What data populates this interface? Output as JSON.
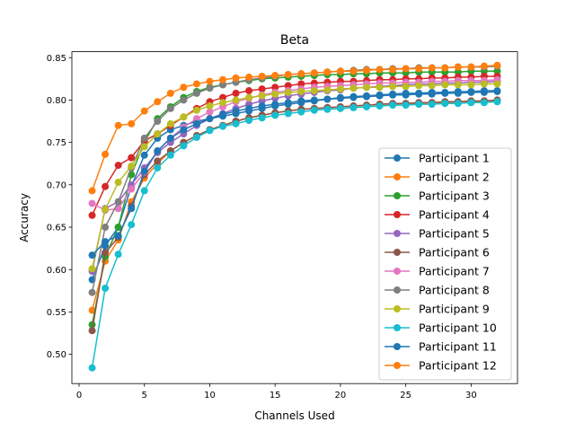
{
  "chart_data": {
    "type": "line",
    "title": "Beta",
    "xlabel": "Channels Used",
    "ylabel": "Accuracy",
    "xlim": [
      -0.55,
      33.55
    ],
    "ylim": [
      0.4655,
      0.857
    ],
    "xticks": [
      0,
      5,
      10,
      15,
      20,
      25,
      30
    ],
    "yticks": [
      0.5,
      0.55,
      0.6,
      0.65,
      0.7,
      0.75,
      0.8,
      0.85
    ],
    "ytick_labels": [
      "0.50",
      "0.55",
      "0.60",
      "0.65",
      "0.70",
      "0.75",
      "0.80",
      "0.85"
    ],
    "grid": false,
    "legend": "lower-right",
    "x": [
      1,
      2,
      3,
      4,
      5,
      6,
      7,
      8,
      9,
      10,
      11,
      12,
      13,
      14,
      15,
      16,
      17,
      18,
      19,
      20,
      21,
      22,
      23,
      24,
      25,
      26,
      27,
      28,
      29,
      30,
      31,
      32
    ],
    "series": [
      {
        "name": "Participant 1",
        "color": "#1f77b4",
        "values": [
          0.588,
          0.628,
          0.65,
          0.698,
          0.735,
          0.755,
          0.765,
          0.77,
          0.775,
          0.778,
          0.781,
          0.784,
          0.787,
          0.79,
          0.793,
          0.795,
          0.797,
          0.799,
          0.801,
          0.803,
          0.804,
          0.805,
          0.806,
          0.807,
          0.808,
          0.808,
          0.809,
          0.809,
          0.81,
          0.81,
          0.811,
          0.811
        ]
      },
      {
        "name": "Participant 2",
        "color": "#ff7f0e",
        "values": [
          0.552,
          0.61,
          0.635,
          0.68,
          0.708,
          0.725,
          0.74,
          0.75,
          0.758,
          0.765,
          0.77,
          0.775,
          0.779,
          0.782,
          0.785,
          0.787,
          0.789,
          0.79,
          0.791,
          0.792,
          0.793,
          0.794,
          0.795,
          0.795,
          0.796,
          0.796,
          0.797,
          0.797,
          0.798,
          0.798,
          0.799,
          0.799
        ]
      },
      {
        "name": "Participant 3",
        "color": "#2ca02c",
        "values": [
          0.535,
          0.615,
          0.65,
          0.712,
          0.75,
          0.778,
          0.792,
          0.803,
          0.81,
          0.815,
          0.818,
          0.821,
          0.823,
          0.825,
          0.826,
          0.827,
          0.828,
          0.829,
          0.83,
          0.83,
          0.831,
          0.831,
          0.832,
          0.832,
          0.832,
          0.833,
          0.833,
          0.833,
          0.833,
          0.834,
          0.834,
          0.834
        ]
      },
      {
        "name": "Participant 4",
        "color": "#d62728",
        "values": [
          0.664,
          0.698,
          0.723,
          0.732,
          0.752,
          0.76,
          0.77,
          0.78,
          0.79,
          0.798,
          0.803,
          0.808,
          0.811,
          0.813,
          0.815,
          0.817,
          0.819,
          0.82,
          0.821,
          0.822,
          0.822,
          0.823,
          0.824,
          0.824,
          0.825,
          0.825,
          0.826,
          0.826,
          0.827,
          0.827,
          0.828,
          0.828
        ]
      },
      {
        "name": "Participant 5",
        "color": "#9467bd",
        "values": [
          0.598,
          0.672,
          0.68,
          0.7,
          0.72,
          0.738,
          0.75,
          0.76,
          0.77,
          0.778,
          0.784,
          0.79,
          0.795,
          0.799,
          0.802,
          0.805,
          0.807,
          0.809,
          0.811,
          0.812,
          0.814,
          0.815,
          0.816,
          0.817,
          0.818,
          0.819,
          0.819,
          0.82,
          0.82,
          0.821,
          0.821,
          0.822
        ]
      },
      {
        "name": "Participant 6",
        "color": "#8c564b",
        "values": [
          0.528,
          0.62,
          0.638,
          0.675,
          0.712,
          0.728,
          0.74,
          0.75,
          0.758,
          0.765,
          0.77,
          0.775,
          0.779,
          0.782,
          0.785,
          0.787,
          0.789,
          0.79,
          0.791,
          0.792,
          0.793,
          0.794,
          0.795,
          0.796,
          0.796,
          0.797,
          0.797,
          0.798,
          0.798,
          0.799,
          0.799,
          0.8
        ]
      },
      {
        "name": "Participant 7",
        "color": "#e377c2",
        "values": [
          0.678,
          0.67,
          0.672,
          0.695,
          0.715,
          0.74,
          0.755,
          0.768,
          0.778,
          0.786,
          0.792,
          0.798,
          0.802,
          0.806,
          0.809,
          0.811,
          0.813,
          0.815,
          0.816,
          0.817,
          0.818,
          0.819,
          0.82,
          0.82,
          0.821,
          0.821,
          0.822,
          0.822,
          0.823,
          0.823,
          0.823,
          0.824
        ]
      },
      {
        "name": "Participant 8",
        "color": "#7f7f7f",
        "values": [
          0.573,
          0.65,
          0.68,
          0.72,
          0.755,
          0.775,
          0.79,
          0.8,
          0.808,
          0.814,
          0.818,
          0.821,
          0.824,
          0.826,
          0.828,
          0.83,
          0.831,
          0.832,
          0.833,
          0.834,
          0.835,
          0.836,
          0.836,
          0.837,
          0.837,
          0.838,
          0.838,
          0.838,
          0.839,
          0.839,
          0.839,
          0.84
        ]
      },
      {
        "name": "Participant 9",
        "color": "#bcbd22",
        "values": [
          0.601,
          0.671,
          0.703,
          0.722,
          0.745,
          0.76,
          0.772,
          0.78,
          0.788,
          0.793,
          0.797,
          0.8,
          0.803,
          0.805,
          0.807,
          0.809,
          0.81,
          0.811,
          0.812,
          0.813,
          0.814,
          0.815,
          0.815,
          0.816,
          0.816,
          0.817,
          0.817,
          0.818,
          0.818,
          0.818,
          0.819,
          0.819
        ]
      },
      {
        "name": "Participant 10",
        "color": "#17becf",
        "values": [
          0.484,
          0.578,
          0.618,
          0.653,
          0.693,
          0.72,
          0.735,
          0.746,
          0.756,
          0.764,
          0.769,
          0.772,
          0.776,
          0.779,
          0.782,
          0.784,
          0.786,
          0.788,
          0.789,
          0.79,
          0.791,
          0.792,
          0.793,
          0.794,
          0.794,
          0.795,
          0.795,
          0.796,
          0.796,
          0.797,
          0.797,
          0.798
        ]
      },
      {
        "name": "Participant 11",
        "color": "#1f77b4",
        "values": [
          0.617,
          0.633,
          0.64,
          0.672,
          0.716,
          0.74,
          0.755,
          0.765,
          0.772,
          0.778,
          0.783,
          0.787,
          0.79,
          0.793,
          0.795,
          0.797,
          0.799,
          0.8,
          0.801,
          0.802,
          0.803,
          0.804,
          0.805,
          0.806,
          0.806,
          0.807,
          0.807,
          0.808,
          0.808,
          0.809,
          0.809,
          0.81
        ]
      },
      {
        "name": "Participant 12",
        "color": "#ff7f0e",
        "values": [
          0.693,
          0.736,
          0.77,
          0.772,
          0.787,
          0.798,
          0.808,
          0.815,
          0.819,
          0.822,
          0.824,
          0.826,
          0.827,
          0.828,
          0.829,
          0.83,
          0.831,
          0.832,
          0.833,
          0.834,
          0.834,
          0.835,
          0.836,
          0.836,
          0.837,
          0.837,
          0.838,
          0.838,
          0.839,
          0.839,
          0.84,
          0.841
        ]
      }
    ]
  }
}
